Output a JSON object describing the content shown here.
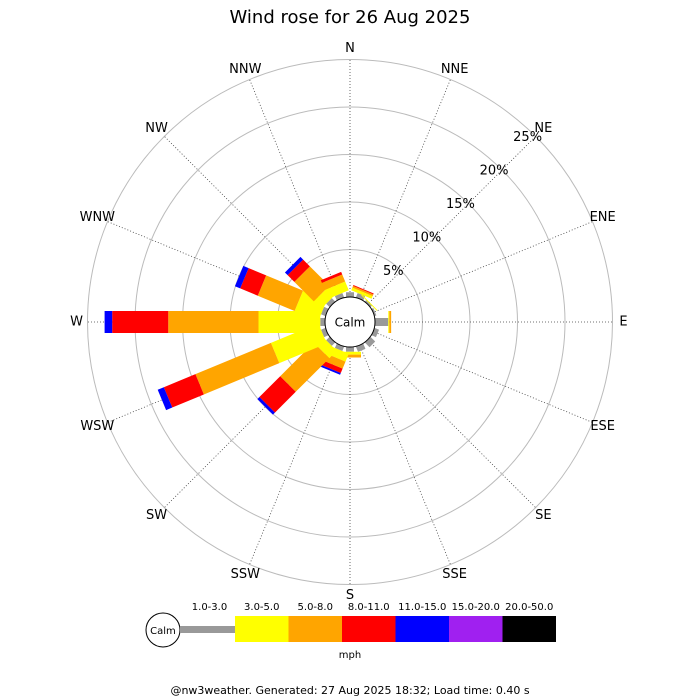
{
  "chart_data": {
    "type": "windrose",
    "title": "Wind rose for 26 Aug 2025",
    "categories": [
      "N",
      "NNE",
      "NE",
      "ENE",
      "E",
      "ESE",
      "SE",
      "SSE",
      "S",
      "SSW",
      "SW",
      "WSW",
      "W",
      "WNW",
      "NW",
      "NNW"
    ],
    "series": [
      {
        "name": "1.0-3.0",
        "color": "#999999",
        "values": [
          0.5,
          0.5,
          0.2,
          0.2,
          1.4,
          0.5,
          0.7,
          0.6,
          0.5,
          0.5,
          0.5,
          0.5,
          0.5,
          0.5,
          0.5,
          0.5
        ]
      },
      {
        "name": "3.0-5.0",
        "color": "#ffff00",
        "values": [
          0,
          0.3,
          0.1,
          0,
          0.1,
          0,
          0,
          0,
          0.3,
          0.9,
          1.1,
          5.4,
          6.5,
          2.7,
          1.1,
          1.0
        ]
      },
      {
        "name": "5.0-8.0",
        "color": "#ffa500",
        "values": [
          0,
          0.2,
          0,
          0,
          0.2,
          0,
          0,
          0,
          0.3,
          0.8,
          5.0,
          8.6,
          9.5,
          4.2,
          2.9,
          0.8
        ]
      },
      {
        "name": "8.0-11.0",
        "color": "#ff0000",
        "values": [
          0,
          0.1,
          0,
          0,
          0,
          0,
          0,
          0,
          0,
          0.5,
          3.1,
          3.6,
          5.9,
          2.0,
          1.0,
          0.3
        ]
      },
      {
        "name": "11.0-15.0",
        "color": "#0000ff",
        "values": [
          0,
          0,
          0,
          0,
          0,
          0,
          0,
          0,
          0,
          0.2,
          0.3,
          0.7,
          0.8,
          0.6,
          0.4,
          0
        ]
      },
      {
        "name": "15.0-20.0",
        "color": "#a020f0",
        "values": [
          0,
          0,
          0,
          0,
          0,
          0,
          0,
          0,
          0,
          0,
          0,
          0,
          0,
          0,
          0,
          0
        ]
      },
      {
        "name": "20.0-50.0",
        "color": "#000000",
        "values": [
          0,
          0,
          0,
          0,
          0,
          0,
          0,
          0,
          0,
          0,
          0,
          0,
          0,
          0,
          0,
          0
        ]
      }
    ],
    "rlim": [
      0,
      25
    ],
    "rticks": [
      {
        "value": 5,
        "label": "5%"
      },
      {
        "value": 10,
        "label": "10%"
      },
      {
        "value": 15,
        "label": "15%"
      },
      {
        "value": 20,
        "label": "20%"
      },
      {
        "value": 25,
        "label": "25%"
      }
    ],
    "calm_label": "Calm",
    "units": "mph",
    "footer": "@nw3weather. Generated: 27 Aug 2025 18:32; Load time: 0.40 s"
  }
}
